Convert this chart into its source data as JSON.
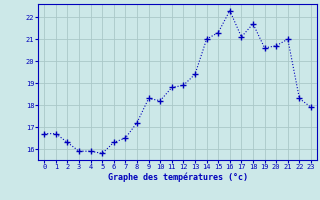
{
  "hours": [
    0,
    1,
    2,
    3,
    4,
    5,
    6,
    7,
    8,
    9,
    10,
    11,
    12,
    13,
    14,
    15,
    16,
    17,
    18,
    19,
    20,
    21,
    22,
    23
  ],
  "temps": [
    16.7,
    16.7,
    16.3,
    15.9,
    15.9,
    15.8,
    16.3,
    16.5,
    17.2,
    18.3,
    18.2,
    18.8,
    18.9,
    19.4,
    21.0,
    21.3,
    22.3,
    21.1,
    21.7,
    20.6,
    20.7,
    21.0,
    18.3,
    17.9
  ],
  "line_color": "#0000bb",
  "marker": "+",
  "marker_size": 4.0,
  "bg_color": "#cce8e8",
  "grid_color": "#aac8c8",
  "xlabel": "Graphe des températures (°c)",
  "ylim": [
    15.5,
    22.6
  ],
  "yticks": [
    16,
    17,
    18,
    19,
    20,
    21,
    22
  ],
  "text_color": "#0000bb",
  "spine_color": "#0000bb",
  "figwidth": 3.2,
  "figheight": 2.0,
  "dpi": 100
}
